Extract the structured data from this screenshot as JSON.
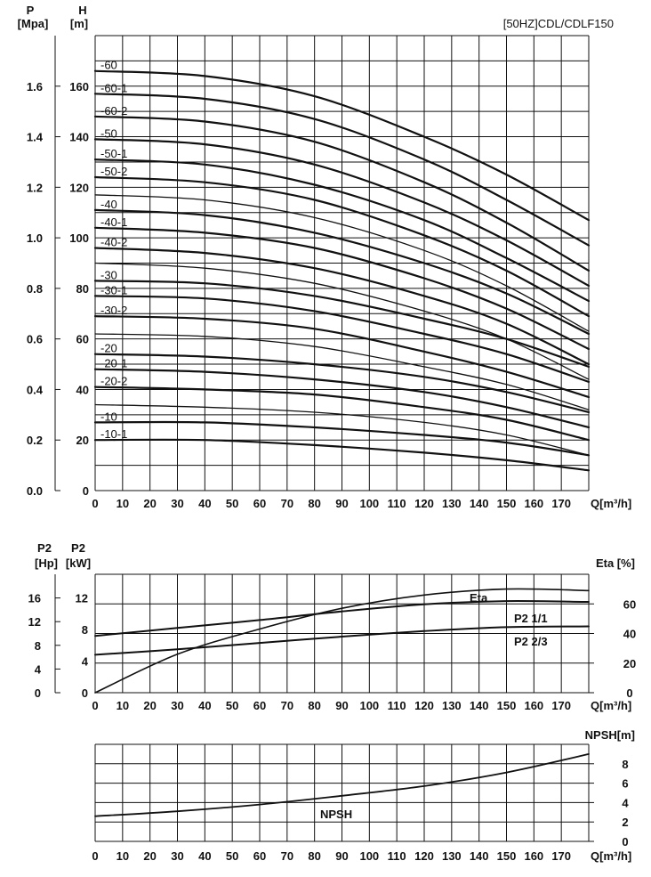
{
  "chart_data": [
    {
      "type": "line",
      "title": "[50HZ]CDL/CDLF150",
      "x_axis": {
        "label": "Q[m³/h]",
        "range": [
          0,
          180
        ],
        "ticks": [
          0,
          10,
          20,
          30,
          40,
          50,
          60,
          70,
          80,
          90,
          100,
          110,
          120,
          130,
          140,
          150,
          160,
          170
        ]
      },
      "y_axis_left_outer": {
        "label_top": "P",
        "label_bottom": "[Mpa]",
        "range": [
          0,
          1.8
        ],
        "ticks": [
          0.0,
          0.2,
          0.4,
          0.6,
          0.8,
          1.0,
          1.2,
          1.4,
          1.6
        ],
        "tick_labels": [
          "0.0",
          "0.2",
          "0.4",
          "0.6",
          "0.8",
          "1.0",
          "1.2",
          "1.4",
          "1.6"
        ]
      },
      "y_axis_left_inner": {
        "label_top": "H",
        "label_bottom": "[m]",
        "range": [
          0,
          180
        ],
        "ticks": [
          0,
          20,
          40,
          60,
          80,
          100,
          120,
          140,
          160
        ],
        "tick_labels": [
          "0",
          "20",
          "40",
          "60",
          "80",
          "100",
          "120",
          "140",
          "160"
        ]
      },
      "grid": true,
      "series": [
        {
          "name": "-60",
          "x": [
            0,
            40,
            80,
            120,
            150,
            180
          ],
          "y": [
            166,
            164,
            156,
            140,
            125,
            107
          ]
        },
        {
          "name": "-60-1",
          "x": [
            0,
            40,
            80,
            120,
            150,
            180
          ],
          "y": [
            157,
            155,
            147,
            131,
            115,
            97
          ]
        },
        {
          "name": "-60-2",
          "x": [
            0,
            40,
            80,
            120,
            150,
            180
          ],
          "y": [
            148,
            146,
            138,
            122,
            106,
            87
          ]
        },
        {
          "name": "",
          "x": [
            0,
            40,
            80,
            120,
            150,
            180
          ],
          "y": [
            139,
            137,
            129,
            114,
            99,
            81
          ]
        },
        {
          "name": "-50",
          "x": [
            0,
            40,
            80,
            120,
            150,
            180
          ],
          "y": [
            139,
            137,
            129,
            114,
            99,
            81
          ]
        },
        {
          "name": "-50-1",
          "x": [
            0,
            40,
            80,
            120,
            150,
            180
          ],
          "y": [
            131,
            129,
            121,
            107,
            92,
            75
          ]
        },
        {
          "name": "-50-2",
          "x": [
            0,
            40,
            80,
            120,
            150,
            180
          ],
          "y": [
            124,
            122,
            115,
            101,
            87,
            69
          ]
        },
        {
          "name": "",
          "x": [
            0,
            40,
            80,
            120,
            150,
            180
          ],
          "y": [
            117,
            115,
            108,
            95,
            81,
            63
          ]
        },
        {
          "name": "-40",
          "x": [
            0,
            40,
            80,
            120,
            150,
            180
          ],
          "y": [
            111,
            109,
            102,
            90,
            78,
            62
          ]
        },
        {
          "name": "-40-1",
          "x": [
            0,
            40,
            80,
            120,
            150,
            180
          ],
          "y": [
            104,
            102,
            96,
            84,
            72,
            56
          ]
        },
        {
          "name": "-40-2",
          "x": [
            0,
            40,
            80,
            120,
            150,
            180
          ],
          "y": [
            96,
            94,
            88,
            77,
            66,
            50
          ]
        },
        {
          "name": "",
          "x": [
            0,
            40,
            80,
            120,
            150,
            180
          ],
          "y": [
            90,
            88,
            82,
            71,
            60,
            44
          ]
        },
        {
          "name": "-30",
          "x": [
            0,
            40,
            80,
            120,
            150,
            180
          ],
          "y": [
            83,
            82,
            77,
            68,
            60,
            49
          ]
        },
        {
          "name": "-30-1",
          "x": [
            0,
            40,
            80,
            120,
            150,
            180
          ],
          "y": [
            77,
            76,
            71,
            62,
            54,
            43
          ]
        },
        {
          "name": "-30-2",
          "x": [
            0,
            40,
            80,
            120,
            150,
            180
          ],
          "y": [
            69,
            68,
            64,
            55,
            47,
            37
          ]
        },
        {
          "name": "",
          "x": [
            0,
            40,
            80,
            120,
            150,
            180
          ],
          "y": [
            62,
            61,
            57,
            49,
            42,
            32
          ]
        },
        {
          "name": "-20",
          "x": [
            0,
            40,
            80,
            120,
            150,
            180
          ],
          "y": [
            54,
            53,
            50,
            45,
            39,
            31
          ]
        },
        {
          "name": "-20-1",
          "x": [
            0,
            40,
            80,
            120,
            150,
            180
          ],
          "y": [
            48,
            47,
            44,
            39,
            33,
            25
          ]
        },
        {
          "name": "-20-2",
          "x": [
            0,
            40,
            80,
            120,
            150,
            180
          ],
          "y": [
            41,
            40,
            38,
            33,
            28,
            20
          ]
        },
        {
          "name": "",
          "x": [
            0,
            40,
            80,
            120,
            150,
            180
          ],
          "y": [
            34,
            33,
            31,
            27,
            22,
            14
          ]
        },
        {
          "name": "-10",
          "x": [
            0,
            40,
            80,
            120,
            150,
            180
          ],
          "y": [
            27,
            27,
            25,
            22,
            19,
            14
          ]
        },
        {
          "name": "-10-1",
          "x": [
            0,
            40,
            80,
            120,
            150,
            180
          ],
          "y": [
            20,
            20,
            18,
            15,
            12,
            8
          ]
        }
      ]
    },
    {
      "type": "line",
      "x_axis": {
        "label": "Q[m³/h]",
        "range": [
          0,
          180
        ],
        "ticks": [
          0,
          10,
          20,
          30,
          40,
          50,
          60,
          70,
          80,
          90,
          100,
          110,
          120,
          130,
          140,
          150,
          160,
          170
        ]
      },
      "y_axis_left_outer": {
        "label_top": "P2",
        "label_bottom": "[Hp]",
        "range": [
          0,
          20
        ],
        "ticks": [
          0,
          4,
          8,
          12,
          16
        ],
        "tick_labels": [
          "0",
          "4",
          "8",
          "12",
          "16"
        ]
      },
      "y_axis_left_inner": {
        "label_top": "P2",
        "label_bottom": "[kW]",
        "range": [
          0,
          15
        ],
        "ticks": [
          0,
          4,
          8,
          12
        ],
        "tick_labels": [
          "0",
          "4",
          "8",
          "12"
        ]
      },
      "y_axis_right": {
        "label": "Eta [%]",
        "range": [
          0,
          80
        ],
        "ticks": [
          0,
          20,
          40,
          60
        ],
        "tick_labels": [
          "0",
          "20",
          "40",
          "60"
        ]
      },
      "grid": true,
      "series": [
        {
          "name": "Eta",
          "axis": "right",
          "x": [
            0,
            30,
            60,
            90,
            120,
            150,
            180
          ],
          "y": [
            0,
            26,
            43,
            57,
            66,
            70,
            69
          ]
        },
        {
          "name": "P2 1/1",
          "axis": "left",
          "x": [
            0,
            30,
            60,
            90,
            120,
            150,
            180
          ],
          "y": [
            7.2,
            8.2,
            9.2,
            10.3,
            11.2,
            11.6,
            11.5
          ]
        },
        {
          "name": "P2 2/3",
          "axis": "left",
          "x": [
            0,
            30,
            60,
            90,
            120,
            150,
            180
          ],
          "y": [
            4.8,
            5.5,
            6.3,
            7.1,
            7.8,
            8.3,
            8.4
          ]
        }
      ],
      "annotations": [
        "Eta",
        "P2 1/1",
        "P2 2/3"
      ]
    },
    {
      "type": "line",
      "x_axis": {
        "label": "Q[m³/h]",
        "range": [
          0,
          180
        ],
        "ticks": [
          0,
          10,
          20,
          30,
          40,
          50,
          60,
          70,
          80,
          90,
          100,
          110,
          120,
          130,
          140,
          150,
          160,
          170
        ]
      },
      "y_axis_right": {
        "label": "NPSH[m]",
        "range": [
          0,
          10
        ],
        "ticks": [
          0,
          2,
          4,
          6,
          8
        ],
        "tick_labels": [
          "0",
          "2",
          "4",
          "6",
          "8"
        ]
      },
      "grid": true,
      "series": [
        {
          "name": "NPSH",
          "axis": "right",
          "x": [
            0,
            30,
            60,
            90,
            120,
            150,
            180
          ],
          "y": [
            2.6,
            3.1,
            3.8,
            4.7,
            5.7,
            7.1,
            9.0
          ]
        }
      ],
      "annotations": [
        "NPSH"
      ]
    }
  ]
}
